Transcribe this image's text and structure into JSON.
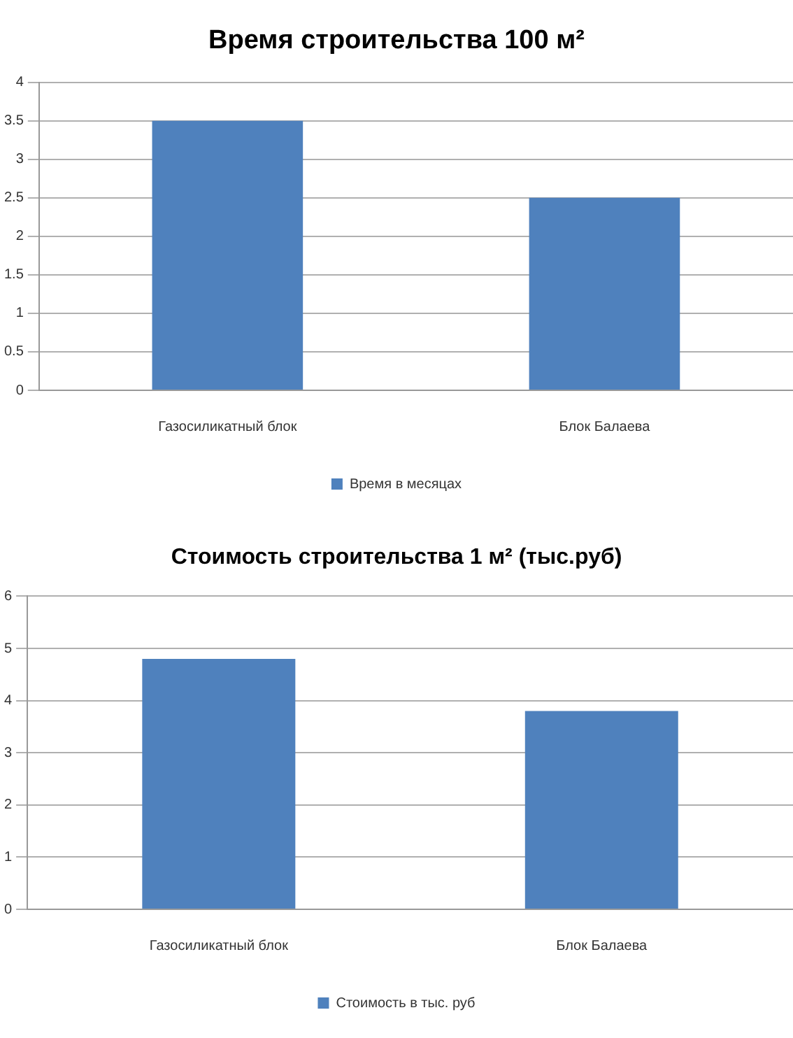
{
  "chart_data": [
    {
      "type": "bar",
      "title": "Время строительства 100 м²",
      "categories": [
        "Газосиликатный блок",
        "Блок Балаева"
      ],
      "series": [
        {
          "name": "Время в месяцах",
          "color": "#4f81bd",
          "values": [
            3.5,
            2.5
          ]
        }
      ],
      "ylim": [
        0,
        4
      ],
      "yticks": [
        0,
        0.5,
        1,
        1.5,
        2,
        2.5,
        3,
        3.5,
        4
      ],
      "grid": "y",
      "legend": "bottom"
    },
    {
      "type": "bar",
      "title": "Стоимость строительства 1 м² (тыс.руб)",
      "categories": [
        "Газосиликатный блок",
        "Блок Балаева"
      ],
      "series": [
        {
          "name": "Стоимость в тыс. руб",
          "color": "#4f81bd",
          "values": [
            4.8,
            3.8
          ]
        }
      ],
      "ylim": [
        0,
        6
      ],
      "yticks": [
        0,
        1,
        2,
        3,
        4,
        5,
        6
      ],
      "grid": "y",
      "legend": "bottom"
    }
  ]
}
